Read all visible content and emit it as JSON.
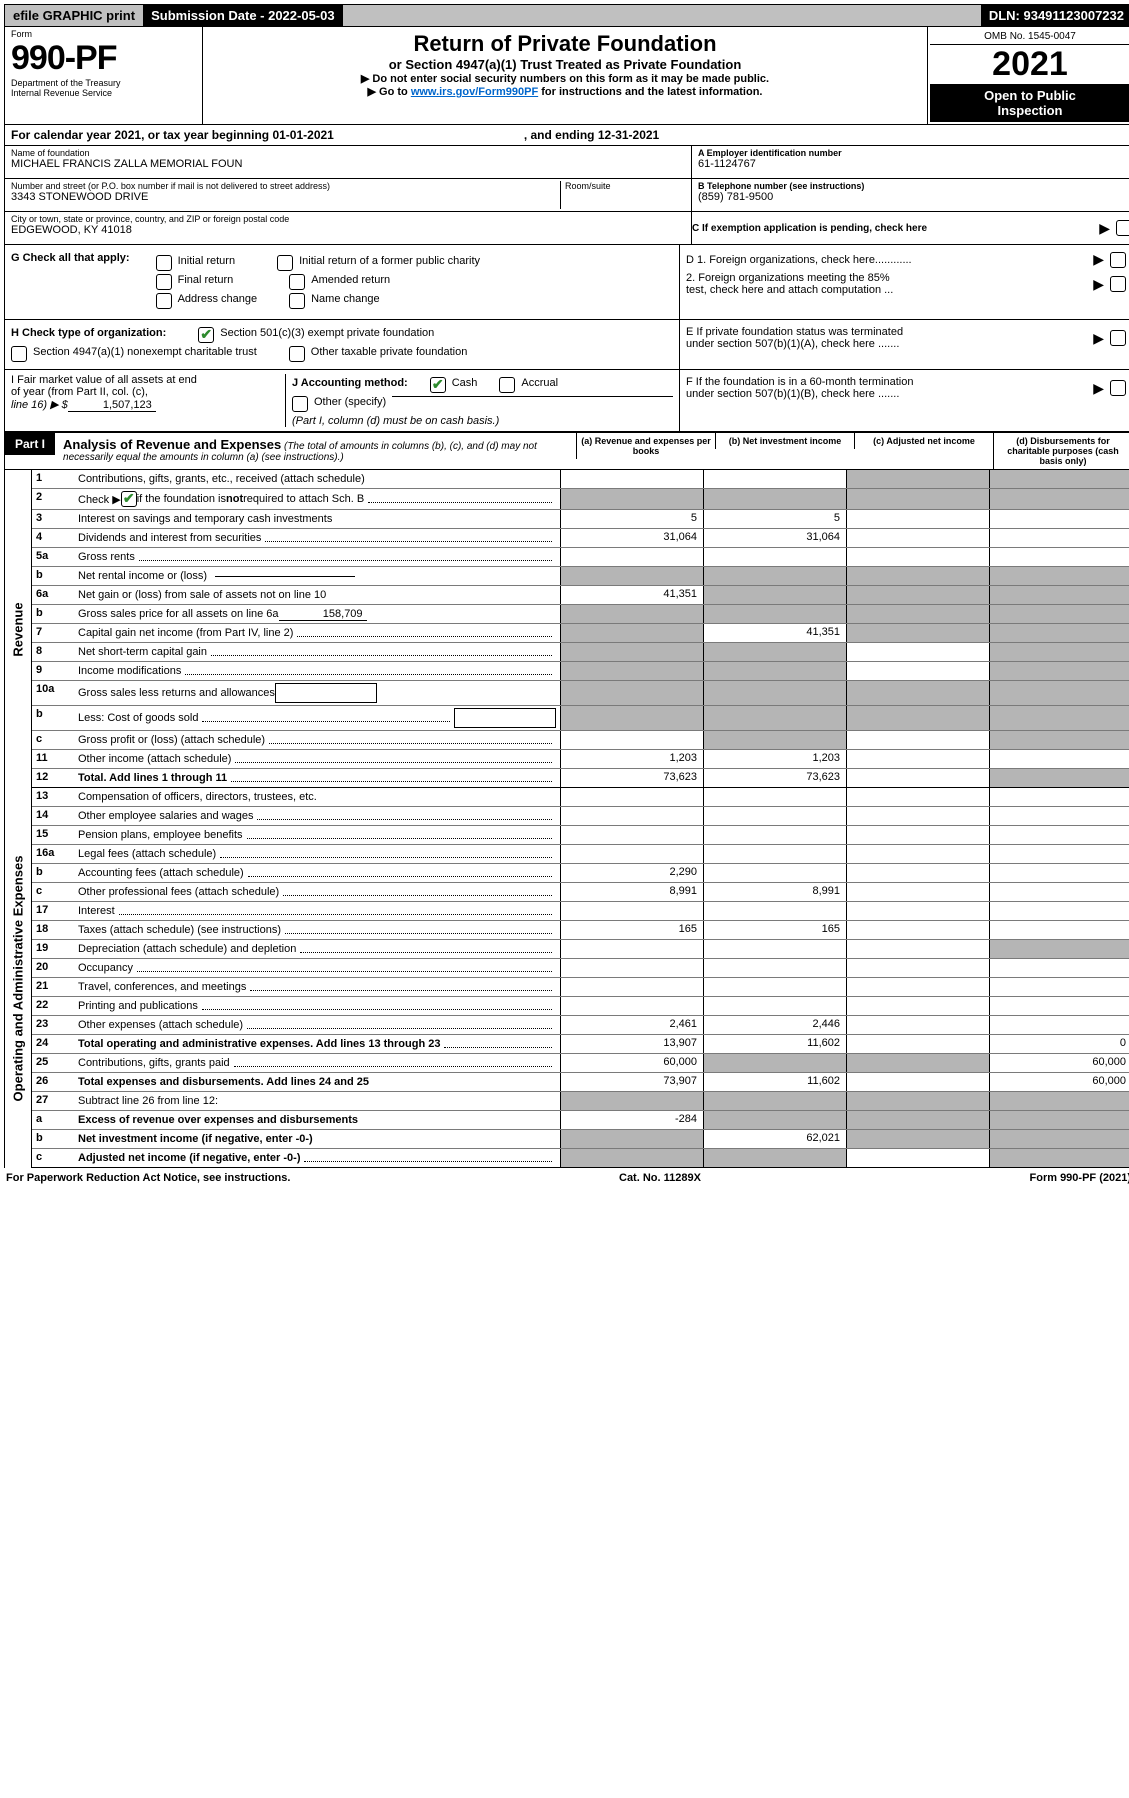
{
  "colors": {
    "link": "#0066cc",
    "black": "#000000",
    "grey_bg": "#c0c0c0",
    "cell_grey": "#b5b5b5",
    "check_green": "#2e8b2e"
  },
  "top": {
    "efile": "efile GRAPHIC print",
    "submission": "Submission Date - 2022-05-03",
    "dln": "DLN: 93491123007232"
  },
  "header": {
    "form_word": "Form",
    "form_num": "990-PF",
    "dept1": "Department of the Treasury",
    "dept2": "Internal Revenue Service",
    "title1": "Return of Private Foundation",
    "title2": "or Section 4947(a)(1) Trust Treated as Private Foundation",
    "note1": "▶ Do not enter social security numbers on this form as it may be made public.",
    "note2_pre": "▶ Go to ",
    "note2_link": "www.irs.gov/Form990PF",
    "note2_post": " for instructions and the latest information.",
    "omb": "OMB No. 1545-0047",
    "year": "2021",
    "inspect1": "Open to Public",
    "inspect2": "Inspection"
  },
  "cal_year": {
    "pre": "For calendar year 2021, or tax year beginning ",
    "begin": "01-01-2021",
    "mid": ", and ending ",
    "end": "12-31-2021"
  },
  "info": {
    "name_label": "Name of foundation",
    "name_val": "MICHAEL FRANCIS ZALLA MEMORIAL FOUN",
    "addr_label": "Number and street (or P.O. box number if mail is not delivered to street address)",
    "addr_val": "3343 STONEWOOD DRIVE",
    "room_label": "Room/suite",
    "city_label": "City or town, state or province, country, and ZIP or foreign postal code",
    "city_val": "EDGEWOOD, KY  41018",
    "ein_label": "A Employer identification number",
    "ein_val": "61-1124767",
    "tel_label": "B Telephone number (see instructions)",
    "tel_val": "(859) 781-9500",
    "c_label": "C If exemption application is pending, check here",
    "d1": "D 1. Foreign organizations, check here............",
    "d2a": "2. Foreign organizations meeting the 85%",
    "d2b": "test, check here and attach computation ...",
    "e1": "E If private foundation status was terminated",
    "e2": "under section 507(b)(1)(A), check here .......",
    "f1": "F If the foundation is in a 60-month termination",
    "f2": "under section 507(b)(1)(B), check here .......",
    "g_label": "G Check all that apply:",
    "g_opts": [
      "Initial return",
      "Initial return of a former public charity",
      "Final return",
      "Amended return",
      "Address change",
      "Name change"
    ],
    "h_label": "H Check type of organization:",
    "h_opt1": "Section 501(c)(3) exempt private foundation",
    "h_opt2": "Section 4947(a)(1) nonexempt charitable trust",
    "h_opt3": "Other taxable private foundation",
    "i1": "I Fair market value of all assets at end",
    "i2": "of year (from Part II, col. (c),",
    "i3": "line 16) ▶ $",
    "i_val": "1,507,123",
    "j_label": "J Accounting method:",
    "j_cash": "Cash",
    "j_accr": "Accrual",
    "j_other": "Other (specify)",
    "j_note": "(Part I, column (d) must be on cash basis.)"
  },
  "part1": {
    "label": "Part I",
    "title": "Analysis of Revenue and Expenses",
    "desc": " (The total of amounts in columns (b), (c), and (d) may not necessarily equal the amounts in column (a) (see instructions).)",
    "col_a": "(a) Revenue and expenses per books",
    "col_b": "(b) Net investment income",
    "col_c": "(c) Adjusted net income",
    "col_d": "(d) Disbursements for charitable purposes (cash basis only)"
  },
  "col_widths": {
    "num": 34,
    "val": 130
  },
  "side_labels": {
    "revenue": "Revenue",
    "expenses": "Operating and Administrative Expenses"
  },
  "rows": [
    {
      "n": "1",
      "desc": "Contributions, gifts, grants, etc., received (attach schedule)",
      "a": "",
      "b": "",
      "c": "",
      "d": "",
      "grey": [
        "c",
        "d"
      ]
    },
    {
      "n": "2",
      "desc": "Check ▶ ✔ if the foundation is not required to attach Sch. B",
      "dots": true,
      "a": "",
      "b": "",
      "c": "",
      "d": "",
      "grey": [
        "a",
        "b",
        "c",
        "d"
      ],
      "hasCheck": true
    },
    {
      "n": "3",
      "desc": "Interest on savings and temporary cash investments",
      "a": "5",
      "b": "5",
      "c": "",
      "d": ""
    },
    {
      "n": "4",
      "desc": "Dividends and interest from securities",
      "dots": true,
      "a": "31,064",
      "b": "31,064",
      "c": "",
      "d": ""
    },
    {
      "n": "5a",
      "desc": "Gross rents",
      "dots": true,
      "a": "",
      "b": "",
      "c": "",
      "d": ""
    },
    {
      "n": "b",
      "desc": "Net rental income or (loss)",
      "inline_blank": true,
      "a": "",
      "b": "",
      "c": "",
      "d": "",
      "grey": [
        "a",
        "b",
        "c",
        "d"
      ]
    },
    {
      "n": "6a",
      "desc": "Net gain or (loss) from sale of assets not on line 10",
      "a": "41,351",
      "b": "",
      "c": "",
      "d": "",
      "grey": [
        "b",
        "c",
        "d"
      ]
    },
    {
      "n": "b",
      "desc": "Gross sales price for all assets on line 6a",
      "inline_val": "158,709",
      "a": "",
      "b": "",
      "c": "",
      "d": "",
      "grey": [
        "a",
        "b",
        "c",
        "d"
      ]
    },
    {
      "n": "7",
      "desc": "Capital gain net income (from Part IV, line 2)",
      "dots": true,
      "a": "",
      "b": "41,351",
      "c": "",
      "d": "",
      "grey": [
        "a",
        "c",
        "d"
      ]
    },
    {
      "n": "8",
      "desc": "Net short-term capital gain",
      "dots": true,
      "a": "",
      "b": "",
      "c": "",
      "d": "",
      "grey": [
        "a",
        "b",
        "d"
      ]
    },
    {
      "n": "9",
      "desc": "Income modifications",
      "dots": true,
      "a": "",
      "b": "",
      "c": "",
      "d": "",
      "grey": [
        "a",
        "b",
        "d"
      ]
    },
    {
      "n": "10a",
      "desc": "Gross sales less returns and allowances",
      "inline_box": true,
      "a": "",
      "b": "",
      "c": "",
      "d": "",
      "grey": [
        "a",
        "b",
        "c",
        "d"
      ]
    },
    {
      "n": "b",
      "desc": "Less: Cost of goods sold",
      "dots": true,
      "inline_box": true,
      "a": "",
      "b": "",
      "c": "",
      "d": "",
      "grey": [
        "a",
        "b",
        "c",
        "d"
      ]
    },
    {
      "n": "c",
      "desc": "Gross profit or (loss) (attach schedule)",
      "dots": true,
      "a": "",
      "b": "",
      "c": "",
      "d": "",
      "grey": [
        "b",
        "d"
      ]
    },
    {
      "n": "11",
      "desc": "Other income (attach schedule)",
      "dots": true,
      "a": "1,203",
      "b": "1,203",
      "c": "",
      "d": ""
    },
    {
      "n": "12",
      "desc": "Total. Add lines 1 through 11",
      "dots": true,
      "bold": true,
      "a": "73,623",
      "b": "73,623",
      "c": "",
      "d": "",
      "grey": [
        "d"
      ]
    }
  ],
  "exp_rows": [
    {
      "n": "13",
      "desc": "Compensation of officers, directors, trustees, etc.",
      "a": "",
      "b": "",
      "c": "",
      "d": ""
    },
    {
      "n": "14",
      "desc": "Other employee salaries and wages",
      "dots": true,
      "a": "",
      "b": "",
      "c": "",
      "d": ""
    },
    {
      "n": "15",
      "desc": "Pension plans, employee benefits",
      "dots": true,
      "a": "",
      "b": "",
      "c": "",
      "d": ""
    },
    {
      "n": "16a",
      "desc": "Legal fees (attach schedule)",
      "dots": true,
      "a": "",
      "b": "",
      "c": "",
      "d": ""
    },
    {
      "n": "b",
      "desc": "Accounting fees (attach schedule)",
      "dots": true,
      "a": "2,290",
      "b": "",
      "c": "",
      "d": ""
    },
    {
      "n": "c",
      "desc": "Other professional fees (attach schedule)",
      "dots": true,
      "a": "8,991",
      "b": "8,991",
      "c": "",
      "d": ""
    },
    {
      "n": "17",
      "desc": "Interest",
      "dots": true,
      "a": "",
      "b": "",
      "c": "",
      "d": ""
    },
    {
      "n": "18",
      "desc": "Taxes (attach schedule) (see instructions)",
      "dots": true,
      "a": "165",
      "b": "165",
      "c": "",
      "d": ""
    },
    {
      "n": "19",
      "desc": "Depreciation (attach schedule) and depletion",
      "dots": true,
      "a": "",
      "b": "",
      "c": "",
      "d": "",
      "grey": [
        "d"
      ]
    },
    {
      "n": "20",
      "desc": "Occupancy",
      "dots": true,
      "a": "",
      "b": "",
      "c": "",
      "d": ""
    },
    {
      "n": "21",
      "desc": "Travel, conferences, and meetings",
      "dots": true,
      "a": "",
      "b": "",
      "c": "",
      "d": ""
    },
    {
      "n": "22",
      "desc": "Printing and publications",
      "dots": true,
      "a": "",
      "b": "",
      "c": "",
      "d": ""
    },
    {
      "n": "23",
      "desc": "Other expenses (attach schedule)",
      "dots": true,
      "a": "2,461",
      "b": "2,446",
      "c": "",
      "d": ""
    },
    {
      "n": "24",
      "desc": "Total operating and administrative expenses. Add lines 13 through 23",
      "dots": true,
      "bold": true,
      "a": "13,907",
      "b": "11,602",
      "c": "",
      "d": "0"
    },
    {
      "n": "25",
      "desc": "Contributions, gifts, grants paid",
      "dots": true,
      "a": "60,000",
      "b": "",
      "c": "",
      "d": "60,000",
      "grey": [
        "b",
        "c"
      ]
    },
    {
      "n": "26",
      "desc": "Total expenses and disbursements. Add lines 24 and 25",
      "bold": true,
      "a": "73,907",
      "b": "11,602",
      "c": "",
      "d": "60,000"
    },
    {
      "n": "27",
      "desc": "Subtract line 26 from line 12:",
      "a": "",
      "b": "",
      "c": "",
      "d": "",
      "grey": [
        "a",
        "b",
        "c",
        "d"
      ]
    },
    {
      "n": "a",
      "desc": "Excess of revenue over expenses and disbursements",
      "bold": true,
      "a": "-284",
      "b": "",
      "c": "",
      "d": "",
      "grey": [
        "b",
        "c",
        "d"
      ]
    },
    {
      "n": "b",
      "desc": "Net investment income (if negative, enter -0-)",
      "bold": true,
      "a": "",
      "b": "62,021",
      "c": "",
      "d": "",
      "grey": [
        "a",
        "c",
        "d"
      ]
    },
    {
      "n": "c",
      "desc": "Adjusted net income (if negative, enter -0-)",
      "dots": true,
      "bold": true,
      "a": "",
      "b": "",
      "c": "",
      "d": "",
      "grey": [
        "a",
        "b",
        "d"
      ]
    }
  ],
  "footer": {
    "left": "For Paperwork Reduction Act Notice, see instructions.",
    "mid": "Cat. No. 11289X",
    "right": "Form 990-PF (2021)"
  }
}
